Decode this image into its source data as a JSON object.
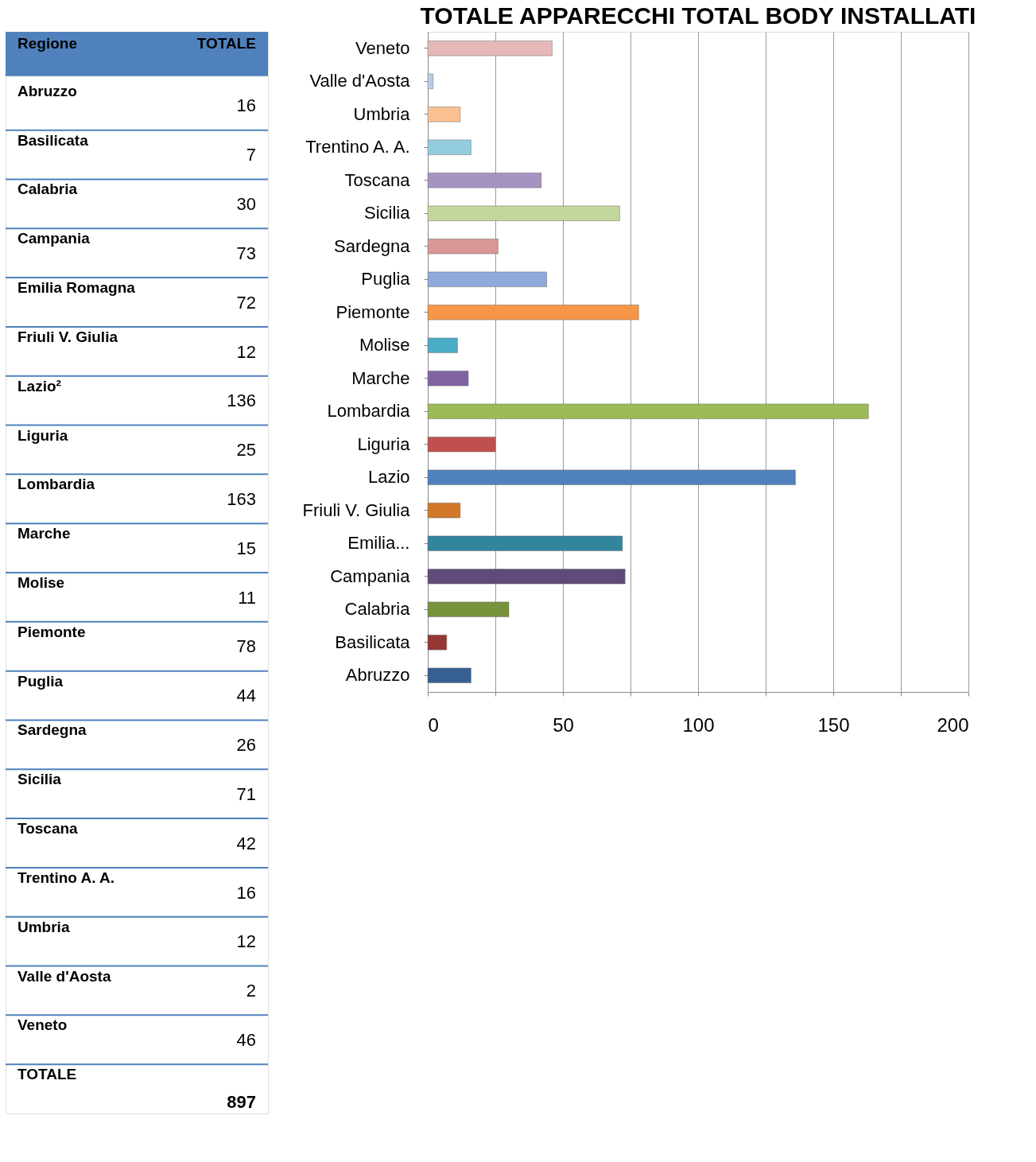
{
  "chart_data": [
    {
      "type": "other",
      "categories": [
        "Abruzzo",
        "Basilicata",
        "Calabria",
        "Campania",
        "Emilia Romagna",
        "Friuli V. Giulia",
        "Lazio²",
        "Liguria",
        "Lombardia",
        "Marche",
        "Molise",
        "Piemonte",
        "Puglia",
        "Sardegna",
        "Sicilia",
        "Toscana",
        "Trentino A. A.",
        "Umbria",
        "Valle d'Aosta",
        "Veneto"
      ],
      "values": [
        16,
        7,
        30,
        73,
        72,
        12,
        136,
        25,
        163,
        15,
        11,
        78,
        44,
        26,
        71,
        42,
        16,
        12,
        2,
        46
      ],
      "data_labels": true,
      "color": "#4f81bd",
      "annotations": [
        "Regione",
        "TOTALE",
        "TOTALE",
        "897"
      ]
    },
    {
      "type": "bar",
      "orientation": "horizontal",
      "title": "TOTALE APPARECCHI TOTAL BODY INSTALLATI",
      "categories": [
        "Veneto",
        "Valle d'Aosta",
        "Umbria",
        "Trentino A. A.",
        "Toscana",
        "Sicilia",
        "Sardegna",
        "Puglia",
        "Piemonte",
        "Molise",
        "Marche",
        "Lombardia",
        "Liguria",
        "Lazio",
        "Friuli V. Giulia",
        "Emilia...",
        "Campania",
        "Calabria",
        "Basilicata",
        "Abruzzo"
      ],
      "values": [
        46,
        2,
        12,
        16,
        42,
        71,
        26,
        44,
        78,
        11,
        15,
        163,
        25,
        136,
        12,
        72,
        73,
        30,
        7,
        16
      ],
      "colors": [
        "#e6b9b8",
        "#b9cde5",
        "#fac090",
        "#93cddd",
        "#a593c2",
        "#c3d69b",
        "#d99694",
        "#8eaadb",
        "#f79646",
        "#4bacc6",
        "#8064a2",
        "#9bbb59",
        "#c0504d",
        "#4f81bd",
        "#d2782a",
        "#31859c",
        "#604a7b",
        "#77933c",
        "#953735",
        "#376092"
      ],
      "xlim": [
        0,
        200
      ],
      "xticks": [
        0,
        {
          "value": 25,
          "label": null
        },
        50,
        {
          "value": 75,
          "label": null
        },
        100,
        {
          "value": 125,
          "label": null
        },
        150,
        {
          "value": 175,
          "label": null
        },
        200
      ],
      "grid": true
    }
  ]
}
